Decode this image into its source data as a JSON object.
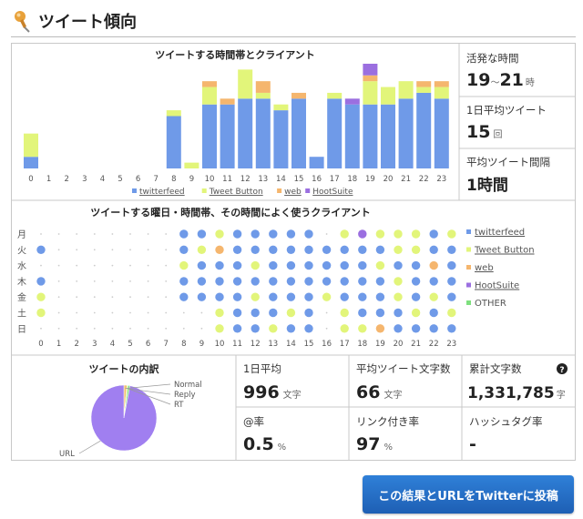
{
  "header": {
    "title": "ツイート傾向"
  },
  "chart1": {
    "title": "ツイートする時間帯とクライアント"
  },
  "chart2": {
    "title": "ツイートする曜日・時間帯、その時間によく使うクライアント"
  },
  "stats": {
    "active_hours": {
      "label": "活発な時間",
      "from": "19",
      "sep": "～",
      "to": "21",
      "unit": "時"
    },
    "daily_tweets": {
      "label": "1日平均ツイート",
      "value": "15",
      "unit": "回"
    },
    "interval": {
      "label": "平均ツイート間隔",
      "value": "1時間"
    }
  },
  "breakdown": {
    "title": "ツイートの内訳",
    "labels": [
      "Normal",
      "Reply",
      "RT",
      "URL"
    ]
  },
  "metrics": {
    "daily_avg": {
      "label": "1日平均",
      "value": "996",
      "unit": "文字"
    },
    "avg_chars": {
      "label": "平均ツイート文字数",
      "value": "66",
      "unit": "文字"
    },
    "total_chars": {
      "label": "累計文字数",
      "value": "1,331,785",
      "unit": "字",
      "help": "?"
    },
    "at_rate": {
      "label": "@率",
      "value": "0.5",
      "unit": "%"
    },
    "link_rate": {
      "label": "リンク付き率",
      "value": "97",
      "unit": "%"
    },
    "hashtag_rate": {
      "label": "ハッシュタグ率",
      "value": "-"
    }
  },
  "post_button": {
    "label": "この結果とURLをTwitterに投稿"
  },
  "colors": {
    "twitterfeed": "#6f9ae8",
    "tweet_button": "#e2f57a",
    "web": "#f5b66e",
    "hootsuite": "#9b6fe0",
    "other": "#7ee07e"
  },
  "chart_data": [
    {
      "type": "bar",
      "title": "ツイートする時間帯とクライアント",
      "categories": [
        "0",
        "1",
        "2",
        "3",
        "4",
        "5",
        "6",
        "7",
        "8",
        "9",
        "10",
        "11",
        "12",
        "13",
        "14",
        "15",
        "16",
        "17",
        "18",
        "19",
        "20",
        "21",
        "22",
        "23"
      ],
      "series": [
        {
          "name": "twitterfeed",
          "values": [
            2,
            0,
            0,
            0,
            0,
            0,
            0,
            0,
            9,
            0,
            11,
            11,
            12,
            12,
            10,
            12,
            2,
            12,
            11,
            11,
            11,
            12,
            13,
            12
          ]
        },
        {
          "name": "Tweet Button",
          "values": [
            4,
            0,
            0,
            0,
            0,
            0,
            0,
            0,
            1,
            1,
            3,
            0,
            5,
            1,
            1,
            0,
            0,
            1,
            0,
            4,
            3,
            3,
            1,
            2
          ]
        },
        {
          "name": "web",
          "values": [
            0,
            0,
            0,
            0,
            0,
            0,
            0,
            0,
            0,
            0,
            1,
            1,
            0,
            2,
            0,
            1,
            0,
            0,
            0,
            1,
            0,
            0,
            1,
            1
          ]
        },
        {
          "name": "HootSuite",
          "values": [
            0,
            0,
            0,
            0,
            0,
            0,
            0,
            0,
            0,
            0,
            0,
            0,
            0,
            0,
            0,
            0,
            0,
            0,
            1,
            2,
            0,
            0,
            0,
            0
          ]
        }
      ],
      "ylim": [
        0,
        18
      ]
    },
    {
      "type": "scatter",
      "title": "ツイートする曜日・時間帯、その時間によく使うクライアント",
      "x": [
        "0",
        "1",
        "2",
        "3",
        "4",
        "5",
        "6",
        "7",
        "8",
        "9",
        "10",
        "11",
        "12",
        "13",
        "14",
        "15",
        "16",
        "17",
        "18",
        "19",
        "20",
        "21",
        "22",
        "23"
      ],
      "rows": [
        "月",
        "火",
        "水",
        "木",
        "金",
        "土",
        "日"
      ],
      "legend": [
        "twitterfeed",
        "Tweet Button",
        "web",
        "HootSuite",
        "OTHER"
      ],
      "cells": [
        ".,.,.,.,.,.,.,.,B,B,Y,B,B,B,B,B,.,Y,H,Y,Y,Y,B,Y",
        "B,.,.,.,.,.,.,.,B,Y,W,B,B,B,B,B,B,B,B,B,Y,Y,B,B",
        ".,.,.,.,.,.,.,.,Y,B,B,B,Y,B,B,B,B,B,B,Y,B,B,W,B",
        "B,.,.,.,.,.,.,.,B,B,B,B,B,B,B,B,B,B,B,B,Y,B,B,B",
        "Y,.,.,.,.,.,.,.,B,B,B,B,Y,B,B,B,Y,B,B,B,Y,B,Y,B",
        "Y,.,.,.,.,.,.,.,.,.,Y,B,B,B,Y,B,.,Y,B,B,B,Y,B,Y",
        ".,.,.,.,.,.,.,.,.,.,Y,B,B,Y,B,B,.,Y,Y,W,B,B,B,B"
      ]
    },
    {
      "type": "pie",
      "title": "ツイートの内訳",
      "categories": [
        "Normal",
        "Reply",
        "RT",
        "URL"
      ],
      "values": [
        1.5,
        0.5,
        1.0,
        97
      ]
    }
  ]
}
